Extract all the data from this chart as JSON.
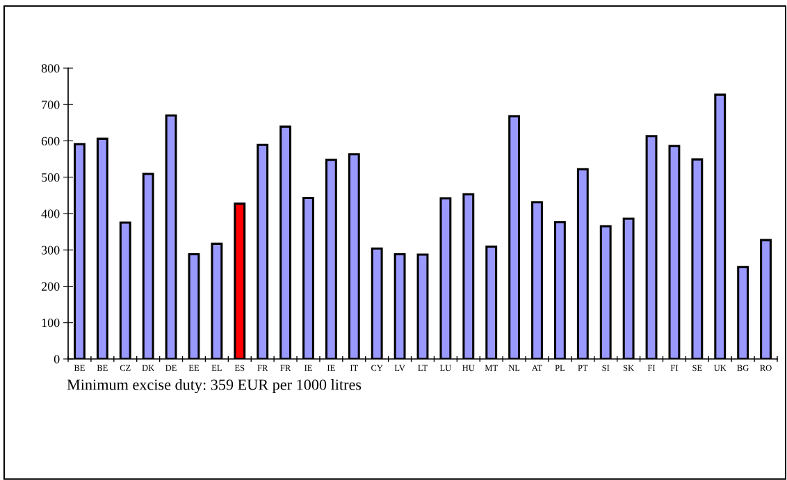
{
  "chart_data": {
    "type": "bar",
    "categories": [
      "BE",
      "BE",
      "CZ",
      "DK",
      "DE",
      "EE",
      "EL",
      "ES",
      "FR",
      "FR",
      "IE",
      "IE",
      "IT",
      "CY",
      "LV",
      "LT",
      "LU",
      "HU",
      "MT",
      "NL",
      "AT",
      "PL",
      "PT",
      "SI",
      "SK",
      "FI",
      "FI",
      "SE",
      "UK",
      "BG",
      "RO"
    ],
    "values": [
      591,
      606,
      375,
      509,
      670,
      288,
      317,
      427,
      589,
      639,
      443,
      548,
      563,
      304,
      288,
      287,
      442,
      453,
      309,
      668,
      431,
      376,
      522,
      365,
      386,
      613,
      586,
      549,
      727,
      253,
      327
    ],
    "colors": [
      "#9999ff",
      "#9999ff",
      "#9999ff",
      "#9999ff",
      "#9999ff",
      "#9999ff",
      "#9999ff",
      "#ff0000",
      "#9999ff",
      "#9999ff",
      "#9999ff",
      "#9999ff",
      "#9999ff",
      "#9999ff",
      "#9999ff",
      "#9999ff",
      "#9999ff",
      "#9999ff",
      "#9999ff",
      "#9999ff",
      "#9999ff",
      "#9999ff",
      "#9999ff",
      "#9999ff",
      "#9999ff",
      "#9999ff",
      "#9999ff",
      "#9999ff",
      "#9999ff",
      "#9999ff",
      "#9999ff"
    ],
    "ylim": [
      0,
      800
    ],
    "yticks": [
      0,
      100,
      200,
      300,
      400,
      500,
      600,
      700,
      800
    ],
    "grid": false,
    "annotations": [
      "Minimum excise duty: 359 EUR per 1000 litres"
    ]
  }
}
